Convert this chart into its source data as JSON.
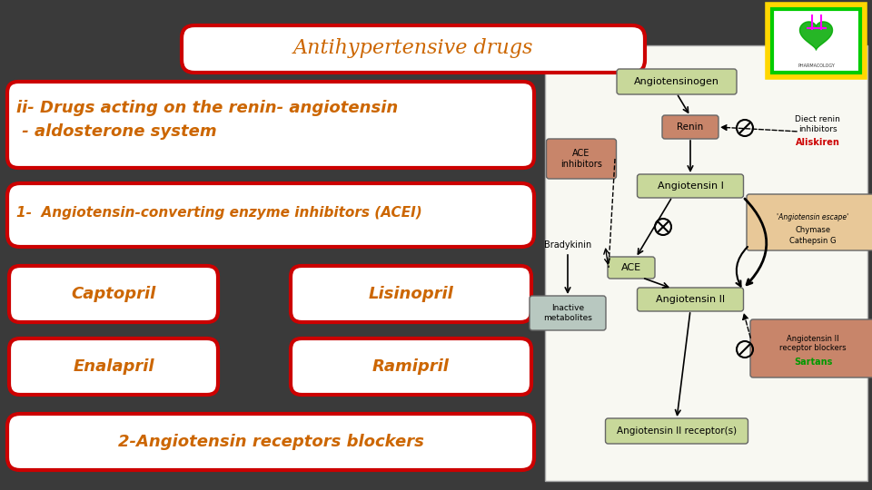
{
  "background_color": "#3a3a3a",
  "title_text": "Antihypertensive drugs",
  "title_color": "#cc6600",
  "title_box_facecolor": "#ffffff",
  "title_box_edgecolor": "#cc0000",
  "subtitle_text": "ii- Drugs acting on the renin- angiotensin\n - aldosterone system",
  "subtitle_color": "#cc6600",
  "subtitle_box_facecolor": "#ffffff",
  "subtitle_box_edgecolor": "#cc0000",
  "acei_text": "1-  Angiotensin-converting enzyme inhibitors (ACEI)",
  "acei_color": "#cc6600",
  "acei_box_facecolor": "#ffffff",
  "acei_box_edgecolor": "#cc0000",
  "drug_labels": [
    "Captopril",
    "Lisinopril",
    "Enalapril",
    "Ramipril"
  ],
  "drug_text_color": "#cc6600",
  "drug_box_facecolor": "#ffffff",
  "drug_box_edgecolor": "#cc0000",
  "bottom_text": "2-Angiotensin receptors blockers",
  "bottom_color": "#cc6600",
  "bottom_box_facecolor": "#ffffff",
  "bottom_box_edgecolor": "#cc0000",
  "logo_border_outer": "#FFD700",
  "logo_border_inner": "#00cc00",
  "diag_bg": "#f5f5f0",
  "diag_edge": "#cccccc",
  "node_green": "#c8d89a",
  "node_salmon": "#c8856a",
  "node_peach": "#e8c898",
  "node_gray": "#b8c8c0",
  "node_text": "#000000",
  "aliskiren_color": "#cc0000",
  "sartans_color": "#009900"
}
